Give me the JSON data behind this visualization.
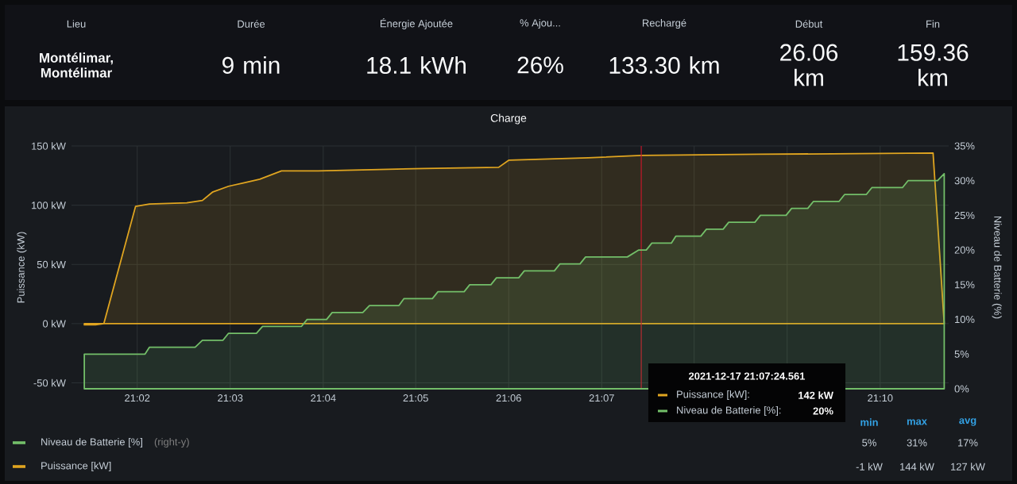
{
  "chart_data": [
    {
      "type": "other",
      "categories": [
        "Lieu",
        "Durée",
        "Énergie Ajoutée",
        "% Ajou...",
        "Rechargé",
        "Début",
        "Fin"
      ],
      "annotations": [
        "Montélimar, Montélimar",
        "9 min",
        "18.1 kWh",
        "26%",
        "133.30 km",
        "26.06 km",
        "159.36 km"
      ]
    },
    {
      "type": "area",
      "title": "Charge",
      "ylabel": "Puissance (kW)",
      "y2label": "Niveau de Batterie (%)",
      "xlim": [
        21.0215,
        21.179
      ],
      "xticks": [
        {
          "value": 21.0333,
          "label": "21:02"
        },
        {
          "value": 21.05,
          "label": "21:03"
        },
        {
          "value": 21.0667,
          "label": "21:04"
        },
        {
          "value": 21.0833,
          "label": "21:05"
        },
        {
          "value": 21.1,
          "label": "21:06"
        },
        {
          "value": 21.1167,
          "label": "21:07"
        },
        {
          "value": 21.1333,
          "label": null
        },
        {
          "value": 21.15,
          "label": null
        },
        {
          "value": 21.1667,
          "label": "21:10"
        }
      ],
      "ylim": [
        -55,
        150
      ],
      "yticks": [
        {
          "value": -50,
          "label": "-50 kW"
        },
        {
          "value": 0,
          "label": "0 kW"
        },
        {
          "value": 50,
          "label": "50 kW"
        },
        {
          "value": 100,
          "label": "100 kW"
        },
        {
          "value": 150,
          "label": "150 kW"
        }
      ],
      "y2lim": [
        0,
        35
      ],
      "y2ticks": [
        {
          "value": 0,
          "label": "0%"
        },
        {
          "value": 5,
          "label": "5%"
        },
        {
          "value": 10,
          "label": "10%"
        },
        {
          "value": 15,
          "label": "15%"
        },
        {
          "value": 20,
          "label": "20%"
        },
        {
          "value": 25,
          "label": "25%"
        },
        {
          "value": 30,
          "label": "30%"
        },
        {
          "value": 35,
          "label": "35%"
        }
      ],
      "grid": true,
      "legend": "bottom",
      "ref_lines": [
        {
          "axis": "x",
          "value": 21.1238,
          "color": "#c4162a"
        }
      ],
      "annotations": [
        "(right-y)",
        "min",
        "max",
        "avg",
        "5%",
        "31%",
        "17%",
        "-1 kW",
        "144 kW",
        "127 kW",
        "2021-12-17 21:07:24.561",
        "Puissance [kW]:",
        "142 kW",
        "Niveau de Batterie [%]:",
        "20%"
      ],
      "series": [
        {
          "name": "Niveau de Batterie [%]",
          "color": "#73bf69",
          "axis": "y2",
          "x": [
            21.0238,
            21.0347,
            21.0355,
            21.0437,
            21.045,
            21.0487,
            21.0497,
            21.0547,
            21.0558,
            21.0628,
            21.0638,
            21.0673,
            21.0683,
            21.0738,
            21.075,
            21.0803,
            21.0812,
            21.0863,
            21.0873,
            21.092,
            21.093,
            21.0968,
            21.0978,
            21.1018,
            21.1028,
            21.1082,
            21.1092,
            21.1128,
            21.1138,
            21.1213,
            21.1233,
            21.1247,
            21.1257,
            21.1292,
            21.13,
            21.1345,
            21.1355,
            21.1385,
            21.1395,
            21.1442,
            21.1452,
            21.1498,
            21.1508,
            21.1537,
            21.1547,
            21.1593,
            21.1603,
            21.1642,
            21.1652,
            21.1707,
            21.1717,
            21.177,
            21.1782
          ],
          "values": [
            5,
            5,
            6,
            6,
            7,
            7,
            8,
            8,
            9,
            9,
            10,
            10,
            11,
            11,
            12,
            12,
            13,
            13,
            14,
            14,
            15,
            15,
            16,
            16,
            17,
            17,
            18,
            18,
            19,
            19,
            20,
            20,
            21,
            21,
            22,
            22,
            23,
            23,
            24,
            24,
            25,
            25,
            26,
            26,
            27,
            27,
            28,
            28,
            29,
            29,
            30,
            30,
            31
          ]
        },
        {
          "name": "Puissance [kW]",
          "color": "#e0a520",
          "x": [
            21.0238,
            21.0258,
            21.0273,
            21.033,
            21.0355,
            21.0422,
            21.045,
            21.0468,
            21.0497,
            21.0525,
            21.0553,
            21.0592,
            21.0658,
            21.0753,
            21.0848,
            21.0982,
            21.1,
            21.1143,
            21.1238,
            21.1448,
            21.1762,
            21.1782
          ],
          "values": [
            -1,
            -1,
            0,
            99,
            101,
            102,
            104,
            111,
            116,
            119,
            122,
            129,
            129,
            130,
            131,
            132,
            138,
            140,
            142,
            143,
            144,
            0
          ]
        }
      ]
    }
  ]
}
